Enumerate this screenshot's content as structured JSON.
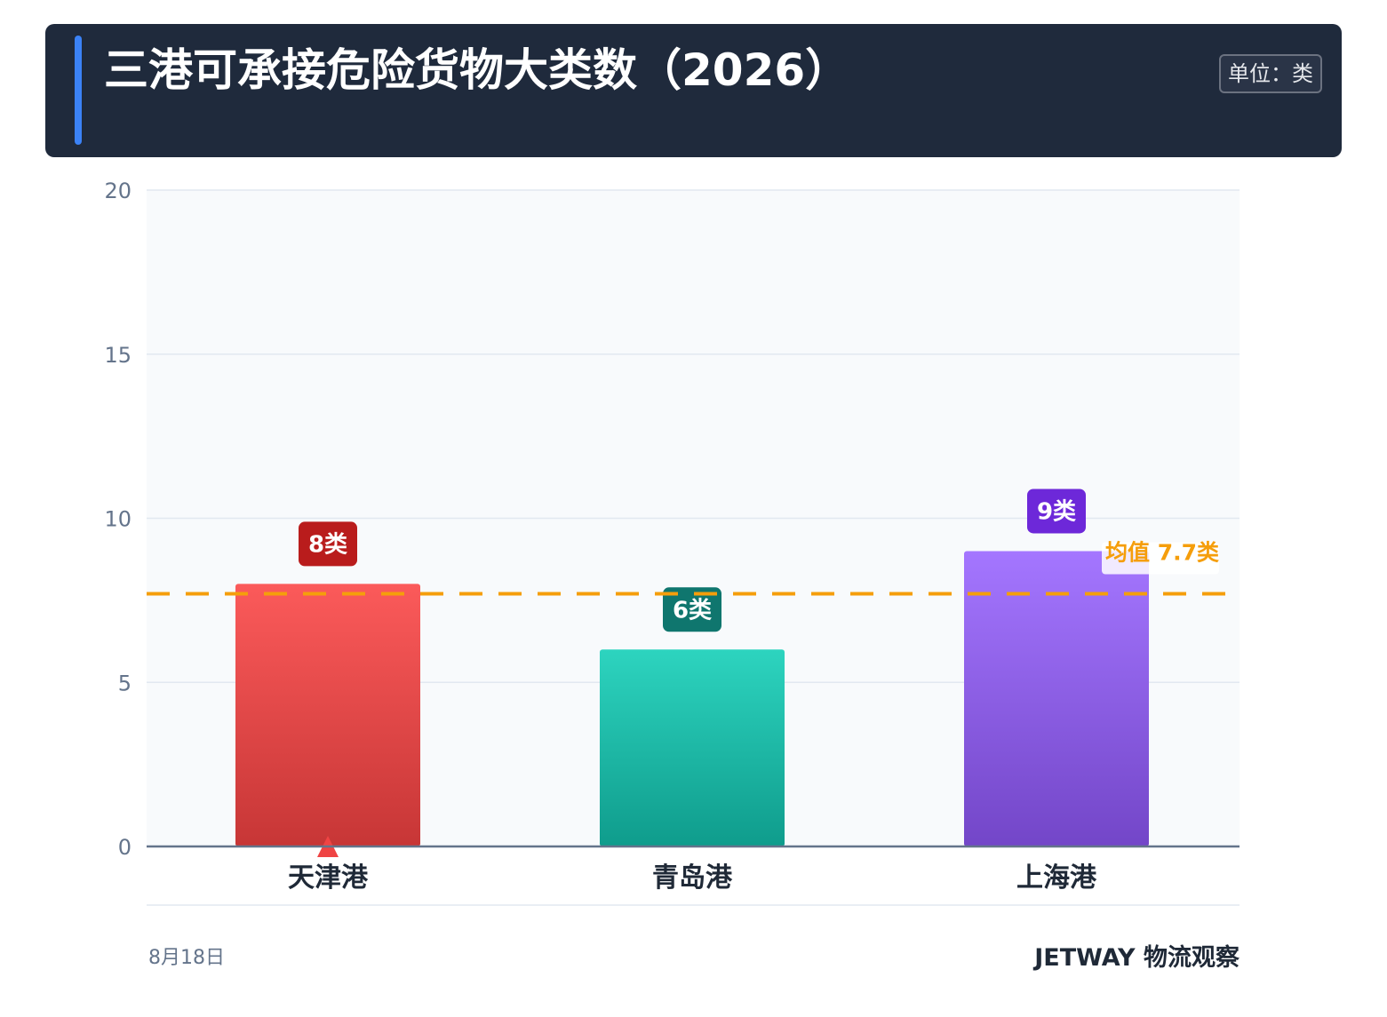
{
  "header": {
    "title": "三港可承接危险货物大类数（2026）",
    "unit": "单位：类"
  },
  "chart_data": {
    "type": "bar",
    "title": "三港可承接危险货物大类数（2026）",
    "categories": [
      "天津港",
      "青岛港",
      "上海港"
    ],
    "values": [
      8,
      6,
      9
    ],
    "value_labels": [
      "8类",
      "6类",
      "9类"
    ],
    "ylim": [
      0,
      20
    ],
    "yticks": [
      0,
      5,
      10,
      15,
      20
    ],
    "grid": true,
    "reference_line": {
      "value": 7.7,
      "label": "均值 7.7类",
      "color": "#f59e0b"
    },
    "highlight_category": "天津港",
    "colors": {
      "bars_top": [
        "#fb5a5a",
        "#2dd4bf",
        "#a476ff"
      ],
      "bars_bottom": [
        "#c73636",
        "#0f9c8c",
        "#7346c8"
      ],
      "labels": [
        "#b91c1c",
        "#0f766e",
        "#6d28d9"
      ],
      "highlight_marker": "#ef4444"
    }
  },
  "footer": {
    "date": "8月18日",
    "brand": "JETWAY 物流观察"
  }
}
